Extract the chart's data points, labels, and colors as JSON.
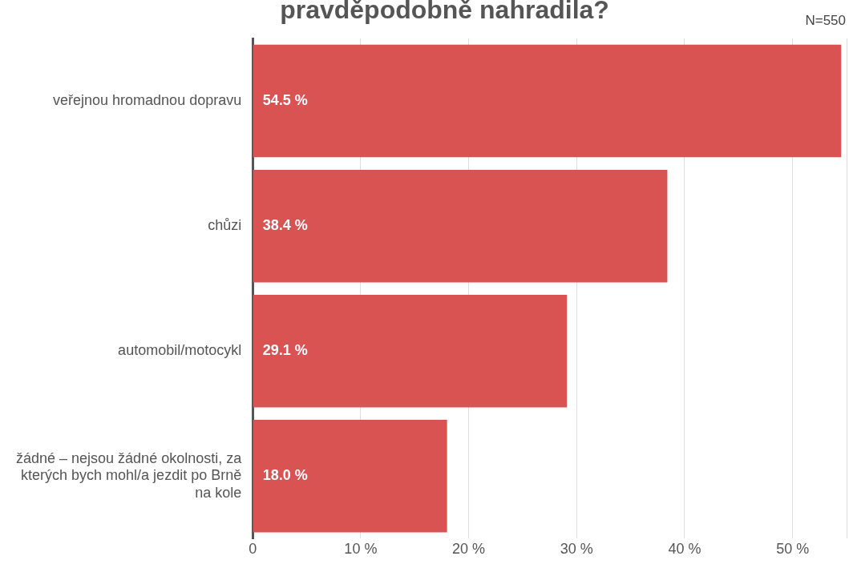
{
  "chart_data": {
    "type": "bar",
    "orientation": "horizontal",
    "title": "pravděpodobně nahradila?",
    "categories": [
      "veřejnou hromadnou dopravu",
      "chůzi",
      "automobil/motocykl",
      "žádné – nejsou žádné okolnosti, za kterých bych mohl/a jezdit po Brně na kole"
    ],
    "values": [
      54.5,
      38.4,
      29.1,
      18.0
    ],
    "value_labels": [
      "54.5 %",
      "38.4 %",
      "29.1 %",
      "18.0 %"
    ],
    "color": "#d95353",
    "xlim": [
      0,
      55
    ],
    "xticks": [
      0,
      {
        "value": 10,
        "label": "10 %"
      },
      {
        "value": 20,
        "label": "20 %"
      },
      {
        "value": 30,
        "label": "30 %"
      },
      {
        "value": 40,
        "label": "40 %"
      },
      {
        "value": 50,
        "label": "50 %"
      },
      {
        "value": 55,
        "label": null
      }
    ],
    "grid": "x",
    "legend": false,
    "annotations": [
      "N=550"
    ]
  }
}
